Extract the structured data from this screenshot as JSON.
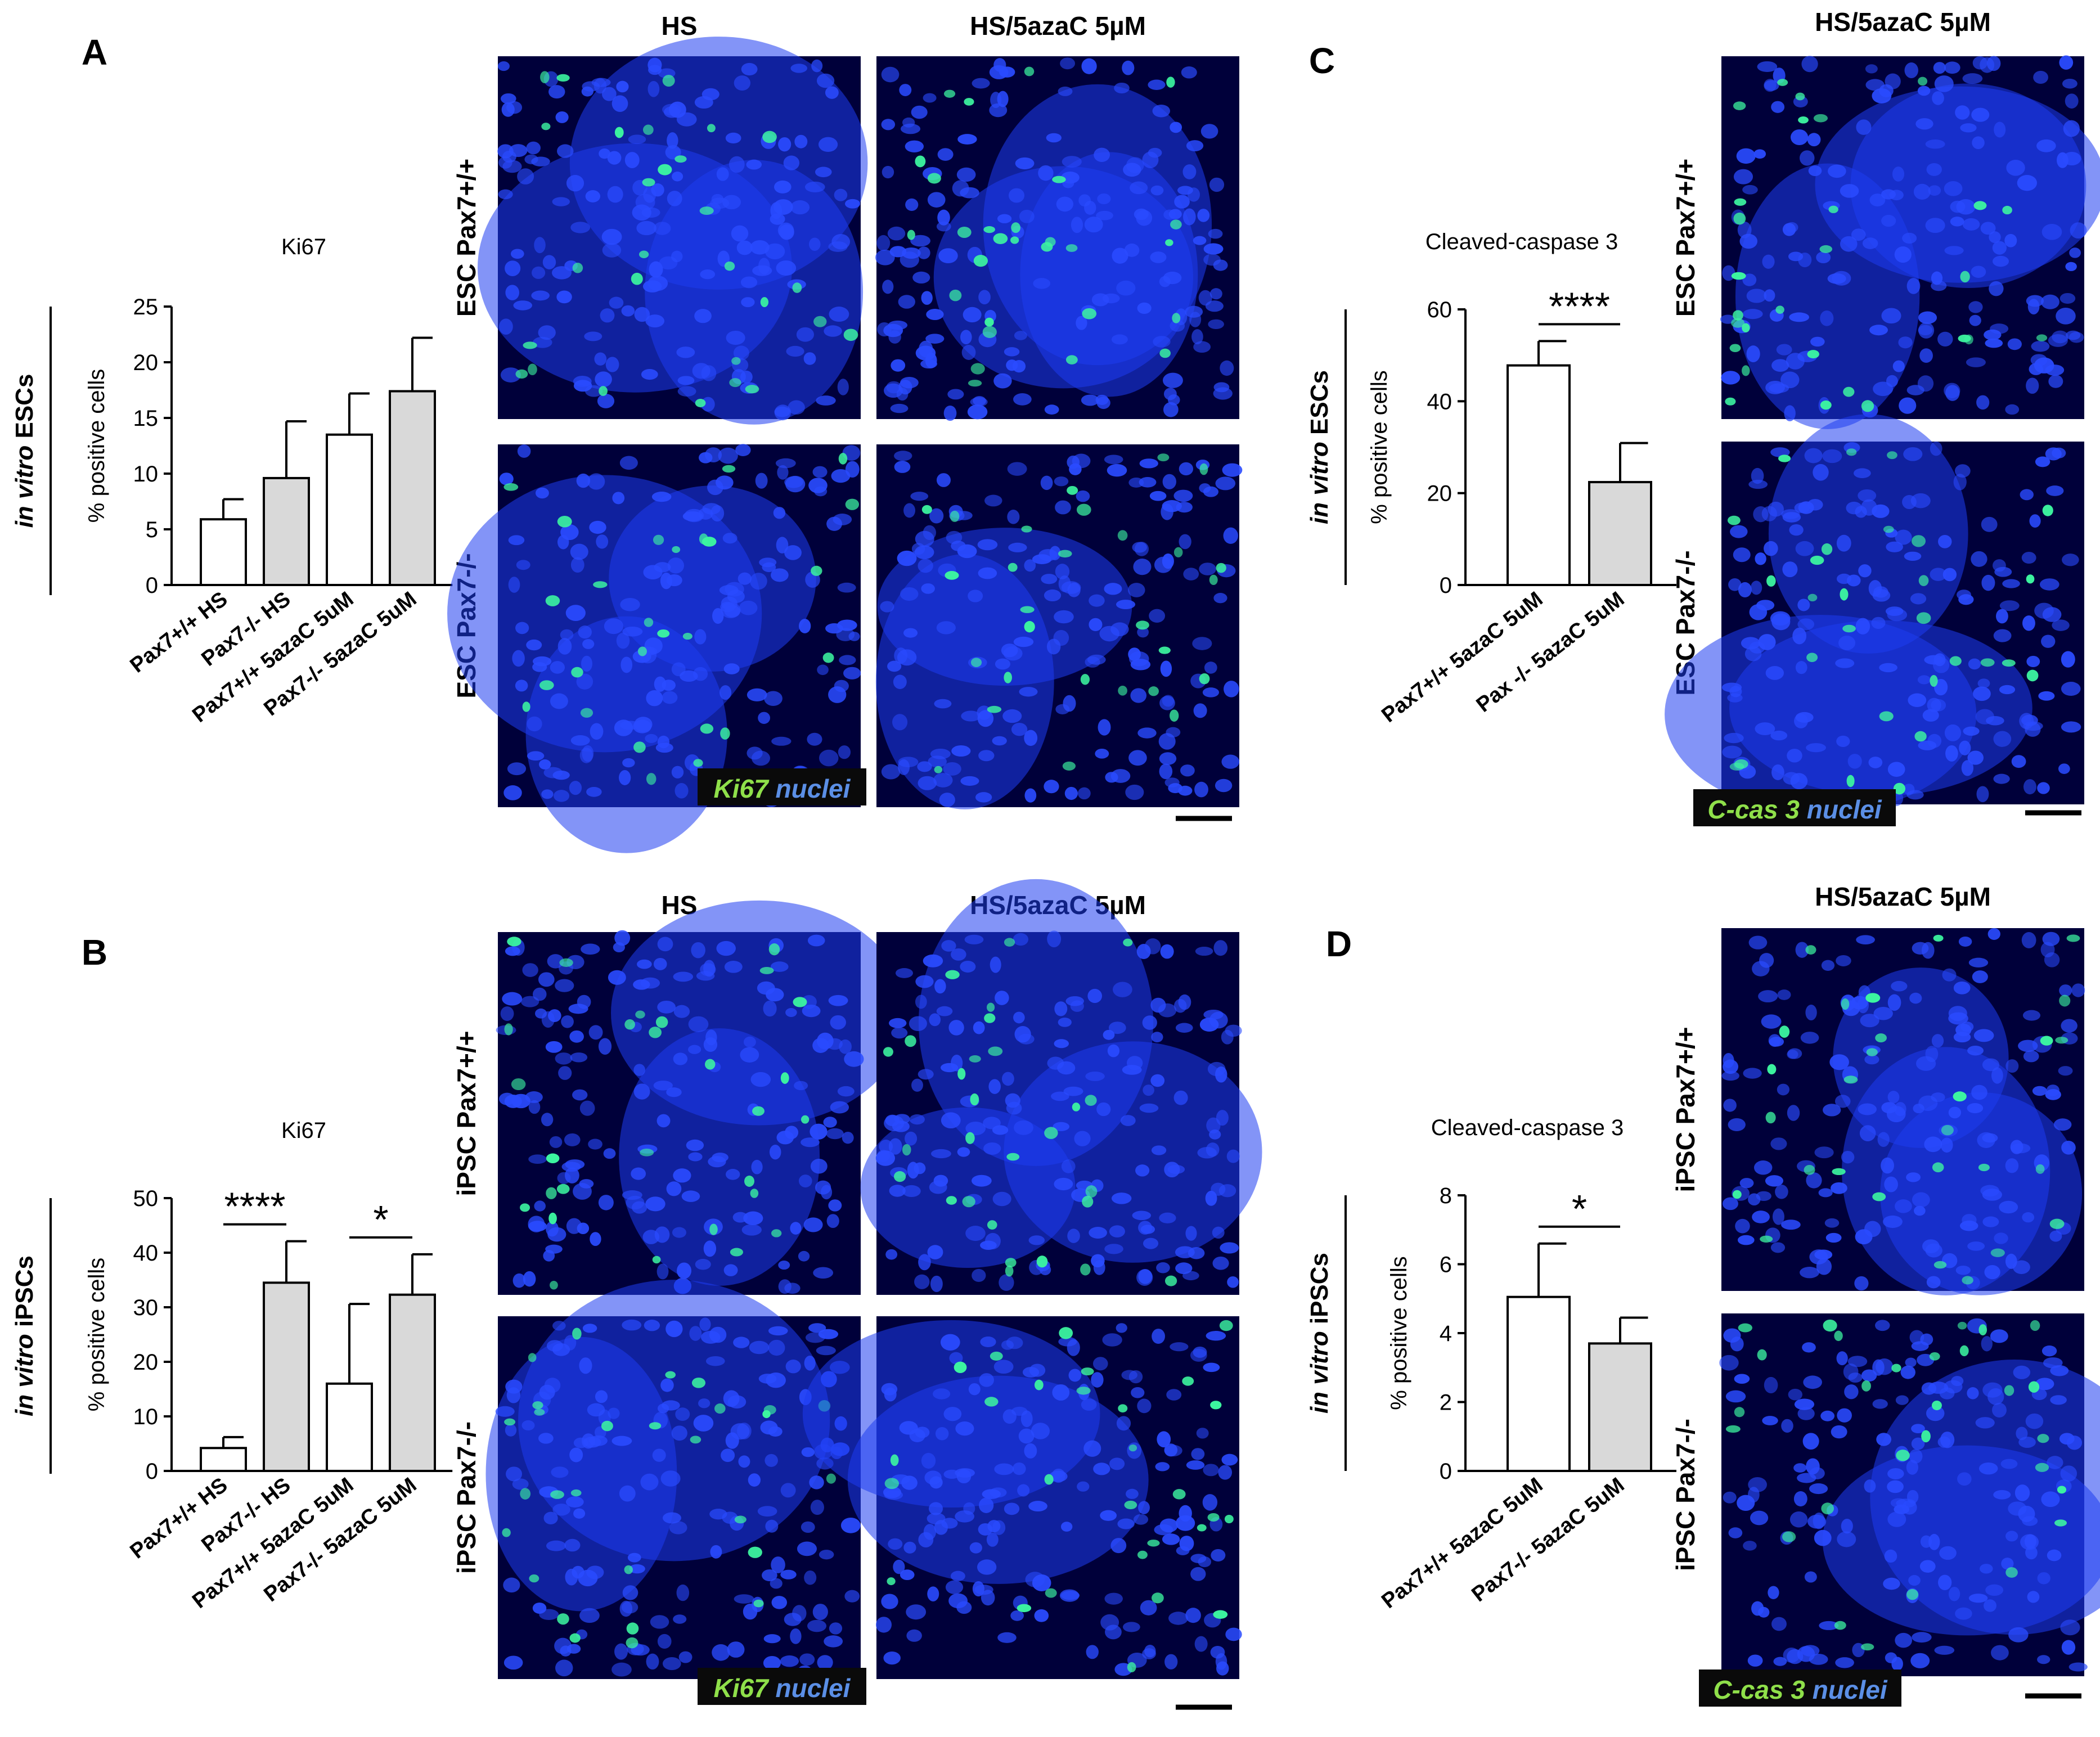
{
  "panels": [
    {
      "letter": "A",
      "chart": {
        "title": "Ki67",
        "ylabel": "% positive cells",
        "side_label": {
          "italic": "in vitro",
          "plain": " ESCs"
        },
        "ylim": [
          0,
          25
        ],
        "yticks": [
          "0",
          "5",
          "10",
          "15",
          "20",
          "25"
        ],
        "categories": [
          "Pax7+/+ HS",
          "Pax7-/- HS",
          "Pax7+/+ 5azaC 5uM",
          "Pax7-/- 5azaC 5uM"
        ],
        "values": [
          5.9,
          9.6,
          13.5,
          17.4
        ],
        "errors": [
          1.8,
          5.1,
          3.7,
          4.8
        ],
        "fills": [
          "#ffffff",
          "#d9d9d9",
          "#ffffff",
          "#d9d9d9"
        ],
        "significance": []
      },
      "micro": {
        "columns": [
          "HS",
          "HS/5azaC 5µM"
        ],
        "rows": [
          "ESC Pax7+/+",
          "ESC Pax7-/-"
        ],
        "legend_marker": "Ki67",
        "legend_nuclei": "nuclei"
      }
    },
    {
      "letter": "B",
      "chart": {
        "title": "Ki67",
        "ylabel": "% positive cells",
        "side_label": {
          "italic": "in vitro",
          "plain": " iPSCs"
        },
        "ylim": [
          0,
          50
        ],
        "yticks": [
          "0",
          "10",
          "20",
          "30",
          "40",
          "50"
        ],
        "categories": [
          "Pax7+/+ HS",
          "Pax7-/- HS",
          "Pax7+/+ 5azaC 5uM",
          "Pax7-/- 5azaC 5uM"
        ],
        "values": [
          4.2,
          34.5,
          16.0,
          32.3
        ],
        "errors": [
          2.0,
          7.6,
          14.6,
          7.4
        ],
        "fills": [
          "#ffffff",
          "#d9d9d9",
          "#ffffff",
          "#d9d9d9"
        ],
        "significance": [
          {
            "from": 0,
            "to": 1,
            "label": "****"
          },
          {
            "from": 2,
            "to": 3,
            "label": "*"
          }
        ]
      },
      "micro": {
        "columns": [
          "HS",
          "HS/5azaC 5µM"
        ],
        "rows": [
          "iPSC Pax7+/+",
          "iPSC Pax7-/-"
        ],
        "legend_marker": "Ki67",
        "legend_nuclei": "nuclei"
      }
    },
    {
      "letter": "C",
      "chart": {
        "title": "Cleaved-caspase 3",
        "ylabel": "% positive cells",
        "side_label": {
          "italic": "in vitro",
          "plain": " ESCs"
        },
        "ylim": [
          0,
          60
        ],
        "yticks": [
          "0",
          "20",
          "40",
          "60"
        ],
        "categories": [
          "Pax7+/+ 5azaC 5uM",
          "Pax -/- 5azaC 5uM"
        ],
        "values": [
          47.8,
          22.4
        ],
        "errors": [
          5.3,
          8.5
        ],
        "fills": [
          "#ffffff",
          "#d9d9d9"
        ],
        "significance": [
          {
            "from": 0,
            "to": 1,
            "label": "****"
          }
        ]
      },
      "micro": {
        "columns": [
          "HS/5azaC 5µM"
        ],
        "rows": [
          "ESC Pax7+/+",
          "ESC Pax7-/-"
        ],
        "legend_marker": "C-cas 3",
        "legend_nuclei": "nuclei"
      }
    },
    {
      "letter": "D",
      "chart": {
        "title": "Cleaved-caspase 3",
        "ylabel": "% positive cells",
        "side_label": {
          "italic": "in vitro",
          "plain": " iPSCs"
        },
        "ylim": [
          0,
          8
        ],
        "yticks": [
          "0",
          "2",
          "4",
          "6",
          "8"
        ],
        "categories": [
          "Pax7+/+ 5azaC 5uM",
          "Pax7-/- 5azaC 5uM"
        ],
        "values": [
          5.05,
          3.7
        ],
        "errors": [
          1.55,
          0.75
        ],
        "fills": [
          "#ffffff",
          "#d9d9d9"
        ],
        "significance": [
          {
            "from": 0,
            "to": 1,
            "label": "*"
          }
        ]
      },
      "micro": {
        "columns": [
          "HS/5azaC 5µM"
        ],
        "rows": [
          "iPSC Pax7+/+",
          "iPSC Pax7-/-"
        ],
        "legend_marker": "C-cas 3",
        "legend_nuclei": "nuclei"
      }
    }
  ],
  "chart_data": [
    {
      "type": "bar",
      "title": "Ki67",
      "ylabel": "% positive cells",
      "categories": [
        "Pax7+/+ HS",
        "Pax7-/- HS",
        "Pax7+/+ 5azaC 5uM",
        "Pax7-/- 5azaC 5uM"
      ],
      "values": [
        5.9,
        9.6,
        13.5,
        17.4
      ],
      "errors": [
        1.8,
        5.1,
        3.7,
        4.8
      ],
      "ylim": [
        0,
        25
      ],
      "grid": false
    },
    {
      "type": "bar",
      "title": "Ki67",
      "ylabel": "% positive cells",
      "categories": [
        "Pax7+/+ HS",
        "Pax7-/- HS",
        "Pax7+/+ 5azaC 5uM",
        "Pax7-/- 5azaC 5uM"
      ],
      "values": [
        4.2,
        34.5,
        16.0,
        32.3
      ],
      "errors": [
        2.0,
        7.6,
        14.6,
        7.4
      ],
      "ylim": [
        0,
        50
      ],
      "annotations": [
        "****",
        "*"
      ],
      "grid": false
    },
    {
      "type": "bar",
      "title": "Cleaved-caspase 3",
      "ylabel": "% positive cells",
      "categories": [
        "Pax7+/+ 5azaC 5uM",
        "Pax -/- 5azaC 5uM"
      ],
      "values": [
        47.8,
        22.4
      ],
      "errors": [
        5.3,
        8.5
      ],
      "ylim": [
        0,
        60
      ],
      "annotations": [
        "****"
      ],
      "grid": false
    },
    {
      "type": "bar",
      "title": "Cleaved-caspase 3",
      "ylabel": "% positive cells",
      "categories": [
        "Pax7+/+ 5azaC 5uM",
        "Pax7-/- 5azaC 5uM"
      ],
      "values": [
        5.05,
        3.7
      ],
      "errors": [
        1.55,
        0.75
      ],
      "ylim": [
        0,
        8
      ],
      "annotations": [
        "*"
      ],
      "grid": false
    }
  ],
  "colors": {
    "nuclei_blue": "#1e3cf0",
    "marker_green": "#3cf5a0",
    "legend_green": "#8fe04a",
    "legend_blue": "#5b8fe6",
    "legend_bg": "#0a0a0a",
    "bar_grey": "#d9d9d9"
  }
}
